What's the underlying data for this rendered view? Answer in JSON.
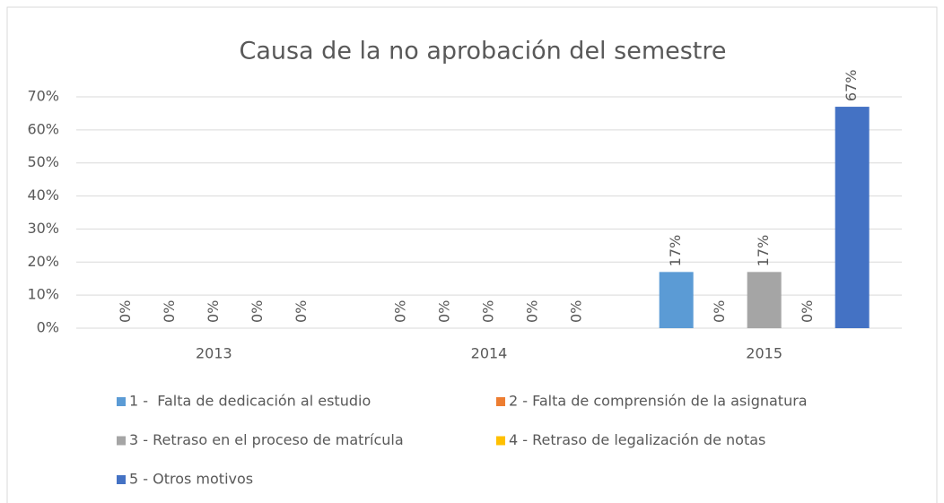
{
  "chart_data": {
    "type": "bar",
    "title": "Causa de la no aprobación del semestre",
    "categories": [
      "2013",
      "2014",
      "2015"
    ],
    "series": [
      {
        "name": "1 -  Falta de dedicación al estudio",
        "color": "#5b9bd5",
        "values": [
          0,
          0,
          17
        ],
        "value_labels": [
          "0%",
          "0%",
          "17%"
        ]
      },
      {
        "name": "2 - Falta de comprensión de la asignatura",
        "color": "#ed7d31",
        "values": [
          0,
          0,
          0
        ],
        "value_labels": [
          "0%",
          "0%",
          "0%"
        ]
      },
      {
        "name": "3 - Retraso en el proceso de matrícula",
        "color": "#a5a5a5",
        "values": [
          0,
          0,
          17
        ],
        "value_labels": [
          "0%",
          "0%",
          "17%"
        ]
      },
      {
        "name": "4 - Retraso de legalización de notas",
        "color": "#ffc000",
        "values": [
          0,
          0,
          0
        ],
        "value_labels": [
          "0%",
          "0%",
          "0%"
        ]
      },
      {
        "name": "5 - Otros motivos",
        "color": "#4472c4",
        "values": [
          0,
          0,
          67
        ],
        "value_labels": [
          "0%",
          "0%",
          "67%"
        ]
      }
    ],
    "ylim": [
      0,
      70
    ],
    "yticks": [
      {
        "value": 0,
        "label": "0%"
      },
      {
        "value": 10,
        "label": "10%"
      },
      {
        "value": 20,
        "label": "20%"
      },
      {
        "value": 30,
        "label": "30%"
      },
      {
        "value": 40,
        "label": "40%"
      },
      {
        "value": 50,
        "label": "50%"
      },
      {
        "value": 60,
        "label": "60%"
      },
      {
        "value": 70,
        "label": "70%"
      }
    ],
    "grid": true
  }
}
